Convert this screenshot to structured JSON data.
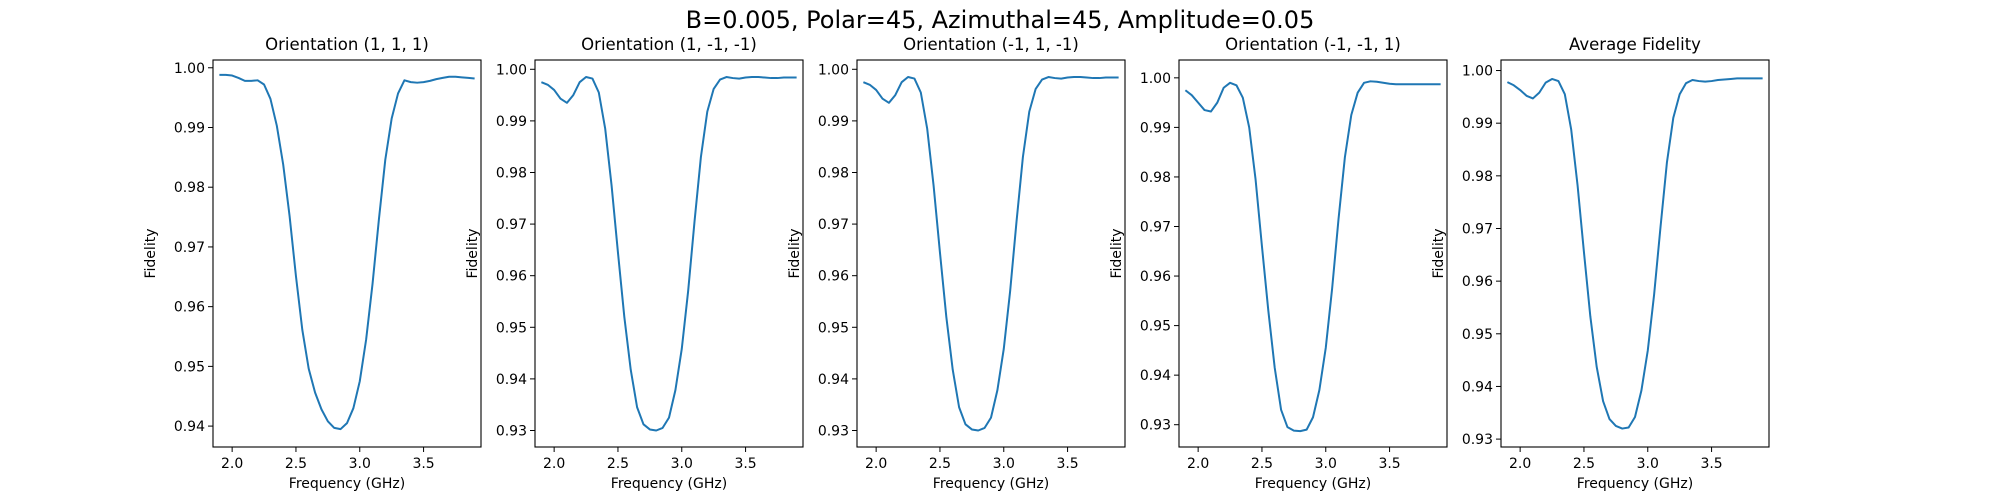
{
  "figure": {
    "suptitle": "B=0.005, Polar=45, Azimuthal=45, Amplitude=0.05",
    "line_color": "#1f77b4"
  },
  "chart_data": [
    {
      "type": "line",
      "title": "Orientation (1, 1, 1)",
      "xlabel": "Frequency (GHz)",
      "ylabel": "Fidelity",
      "xlim": [
        1.85,
        3.95
      ],
      "ylim": [
        0.9365,
        1.0013
      ],
      "xticks": [
        2.0,
        2.5,
        3.0,
        3.5
      ],
      "xtick_labels": [
        "2.0",
        "2.5",
        "3.0",
        "3.5"
      ],
      "yticks": [
        0.94,
        0.95,
        0.96,
        0.97,
        0.98,
        0.99,
        1.0
      ],
      "ytick_labels": [
        "0.94",
        "0.95",
        "0.96",
        "0.97",
        "0.98",
        "0.99",
        "1.00"
      ],
      "series": [
        {
          "x": [
            1.9,
            1.95,
            2.0,
            2.05,
            2.1,
            2.15,
            2.2,
            2.25,
            2.3,
            2.35,
            2.4,
            2.45,
            2.5,
            2.55,
            2.6,
            2.65,
            2.7,
            2.75,
            2.8,
            2.85,
            2.9,
            2.95,
            3.0,
            3.05,
            3.1,
            3.15,
            3.2,
            3.25,
            3.3,
            3.35,
            3.4,
            3.45,
            3.5,
            3.55,
            3.6,
            3.65,
            3.7,
            3.75,
            3.8,
            3.85,
            3.9
          ],
          "y": [
            0.9988,
            0.9988,
            0.9987,
            0.9983,
            0.9978,
            0.9978,
            0.9979,
            0.9972,
            0.9948,
            0.9903,
            0.9838,
            0.9752,
            0.9651,
            0.9561,
            0.9496,
            0.9456,
            0.9428,
            0.9408,
            0.9397,
            0.9395,
            0.9405,
            0.943,
            0.9475,
            0.9545,
            0.9638,
            0.9746,
            0.9846,
            0.9915,
            0.9957,
            0.9979,
            0.9976,
            0.9975,
            0.9976,
            0.9978,
            0.9981,
            0.9983,
            0.9985,
            0.9985,
            0.9984,
            0.9983,
            0.9982
          ]
        }
      ]
    },
    {
      "type": "line",
      "title": "Orientation (1, -1, -1)",
      "xlabel": "Frequency (GHz)",
      "ylabel": "Fidelity",
      "xlim": [
        1.85,
        3.95
      ],
      "ylim": [
        0.9268,
        1.0018
      ],
      "xticks": [
        2.0,
        2.5,
        3.0,
        3.5
      ],
      "xtick_labels": [
        "2.0",
        "2.5",
        "3.0",
        "3.5"
      ],
      "yticks": [
        0.93,
        0.94,
        0.95,
        0.96,
        0.97,
        0.98,
        0.99,
        1.0
      ],
      "ytick_labels": [
        "0.93",
        "0.94",
        "0.95",
        "0.96",
        "0.97",
        "0.98",
        "0.99",
        "1.00"
      ],
      "series": [
        {
          "x": [
            1.9,
            1.95,
            2.0,
            2.05,
            2.1,
            2.15,
            2.2,
            2.25,
            2.3,
            2.35,
            2.4,
            2.45,
            2.5,
            2.55,
            2.6,
            2.65,
            2.7,
            2.75,
            2.8,
            2.85,
            2.9,
            2.95,
            3.0,
            3.05,
            3.1,
            3.15,
            3.2,
            3.25,
            3.3,
            3.35,
            3.4,
            3.45,
            3.5,
            3.55,
            3.6,
            3.65,
            3.7,
            3.75,
            3.8,
            3.85,
            3.9
          ],
          "y": [
            0.9975,
            0.997,
            0.996,
            0.9943,
            0.9935,
            0.995,
            0.9975,
            0.9985,
            0.9982,
            0.9955,
            0.9885,
            0.9775,
            0.9645,
            0.952,
            0.9418,
            0.9345,
            0.9312,
            0.9302,
            0.93,
            0.9305,
            0.9325,
            0.9378,
            0.9458,
            0.957,
            0.9705,
            0.983,
            0.9918,
            0.9962,
            0.998,
            0.9985,
            0.9983,
            0.9982,
            0.9984,
            0.9985,
            0.9985,
            0.9984,
            0.9983,
            0.9983,
            0.9984,
            0.9984,
            0.9984
          ]
        }
      ]
    },
    {
      "type": "line",
      "title": "Orientation (-1, 1, -1)",
      "xlabel": "Frequency (GHz)",
      "ylabel": "Fidelity",
      "xlim": [
        1.85,
        3.95
      ],
      "ylim": [
        0.9268,
        1.0018
      ],
      "xticks": [
        2.0,
        2.5,
        3.0,
        3.5
      ],
      "xtick_labels": [
        "2.0",
        "2.5",
        "3.0",
        "3.5"
      ],
      "yticks": [
        0.93,
        0.94,
        0.95,
        0.96,
        0.97,
        0.98,
        0.99,
        1.0
      ],
      "ytick_labels": [
        "0.93",
        "0.94",
        "0.95",
        "0.96",
        "0.97",
        "0.98",
        "0.99",
        "1.00"
      ],
      "series": [
        {
          "x": [
            1.9,
            1.95,
            2.0,
            2.05,
            2.1,
            2.15,
            2.2,
            2.25,
            2.3,
            2.35,
            2.4,
            2.45,
            2.5,
            2.55,
            2.6,
            2.65,
            2.7,
            2.75,
            2.8,
            2.85,
            2.9,
            2.95,
            3.0,
            3.05,
            3.1,
            3.15,
            3.2,
            3.25,
            3.3,
            3.35,
            3.4,
            3.45,
            3.5,
            3.55,
            3.6,
            3.65,
            3.7,
            3.75,
            3.8,
            3.85,
            3.9
          ],
          "y": [
            0.9975,
            0.997,
            0.996,
            0.9943,
            0.9935,
            0.995,
            0.9975,
            0.9985,
            0.9982,
            0.9955,
            0.9885,
            0.9775,
            0.9645,
            0.952,
            0.9418,
            0.9345,
            0.9312,
            0.9302,
            0.93,
            0.9305,
            0.9325,
            0.9378,
            0.9458,
            0.957,
            0.9705,
            0.983,
            0.9918,
            0.9962,
            0.998,
            0.9985,
            0.9983,
            0.9982,
            0.9984,
            0.9985,
            0.9985,
            0.9984,
            0.9983,
            0.9983,
            0.9984,
            0.9984,
            0.9984
          ]
        }
      ]
    },
    {
      "type": "line",
      "title": "Orientation (-1, -1, 1)",
      "xlabel": "Frequency (GHz)",
      "ylabel": "Fidelity",
      "xlim": [
        1.85,
        3.95
      ],
      "ylim": [
        0.9255,
        1.0036
      ],
      "xticks": [
        2.0,
        2.5,
        3.0,
        3.5
      ],
      "xtick_labels": [
        "2.0",
        "2.5",
        "3.0",
        "3.5"
      ],
      "yticks": [
        0.93,
        0.94,
        0.95,
        0.96,
        0.97,
        0.98,
        0.99,
        1.0
      ],
      "ytick_labels": [
        "0.93",
        "0.94",
        "0.95",
        "0.96",
        "0.97",
        "0.98",
        "0.99",
        "1.00"
      ],
      "series": [
        {
          "x": [
            1.9,
            1.95,
            2.0,
            2.05,
            2.1,
            2.15,
            2.2,
            2.25,
            2.3,
            2.35,
            2.4,
            2.45,
            2.5,
            2.55,
            2.6,
            2.65,
            2.7,
            2.75,
            2.8,
            2.85,
            2.9,
            2.95,
            3.0,
            3.05,
            3.1,
            3.15,
            3.2,
            3.25,
            3.3,
            3.35,
            3.4,
            3.45,
            3.5,
            3.55,
            3.6,
            3.65,
            3.7,
            3.75,
            3.8,
            3.85,
            3.9
          ],
          "y": [
            0.9975,
            0.9965,
            0.995,
            0.9935,
            0.9932,
            0.995,
            0.998,
            0.999,
            0.9985,
            0.996,
            0.99,
            0.9795,
            0.966,
            0.953,
            0.9415,
            0.933,
            0.9295,
            0.9288,
            0.9287,
            0.929,
            0.9315,
            0.937,
            0.9455,
            0.9575,
            0.9715,
            0.984,
            0.9925,
            0.997,
            0.999,
            0.9993,
            0.9992,
            0.999,
            0.9988,
            0.9987,
            0.9987,
            0.9987,
            0.9987,
            0.9987,
            0.9987,
            0.9987,
            0.9987
          ]
        }
      ]
    },
    {
      "type": "line",
      "title": "Average Fidelity",
      "xlabel": "Frequency (GHz)",
      "ylabel": "Fidelity",
      "xlim": [
        1.85,
        3.95
      ],
      "ylim": [
        0.9285,
        1.002
      ],
      "xticks": [
        2.0,
        2.5,
        3.0,
        3.5
      ],
      "xtick_labels": [
        "2.0",
        "2.5",
        "3.0",
        "3.5"
      ],
      "yticks": [
        0.93,
        0.94,
        0.95,
        0.96,
        0.97,
        0.98,
        0.99,
        1.0
      ],
      "ytick_labels": [
        "0.93",
        "0.94",
        "0.95",
        "0.96",
        "0.97",
        "0.98",
        "0.99",
        "1.00"
      ],
      "series": [
        {
          "x": [
            1.9,
            1.95,
            2.0,
            2.05,
            2.1,
            2.15,
            2.2,
            2.25,
            2.3,
            2.35,
            2.4,
            2.45,
            2.5,
            2.55,
            2.6,
            2.65,
            2.7,
            2.75,
            2.8,
            2.85,
            2.9,
            2.95,
            3.0,
            3.05,
            3.1,
            3.15,
            3.2,
            3.25,
            3.3,
            3.35,
            3.4,
            3.45,
            3.5,
            3.55,
            3.6,
            3.65,
            3.7,
            3.75,
            3.8,
            3.85,
            3.9
          ],
          "y": [
            0.9978,
            0.9972,
            0.9963,
            0.9952,
            0.9947,
            0.9958,
            0.9977,
            0.9984,
            0.998,
            0.9955,
            0.9888,
            0.9782,
            0.9655,
            0.9533,
            0.9437,
            0.9372,
            0.9338,
            0.9325,
            0.932,
            0.9322,
            0.9342,
            0.9392,
            0.9468,
            0.9575,
            0.9703,
            0.9825,
            0.991,
            0.9955,
            0.9976,
            0.9982,
            0.998,
            0.9979,
            0.998,
            0.9982,
            0.9983,
            0.9984,
            0.9985,
            0.9985,
            0.9985,
            0.9985,
            0.9985
          ]
        }
      ]
    }
  ]
}
